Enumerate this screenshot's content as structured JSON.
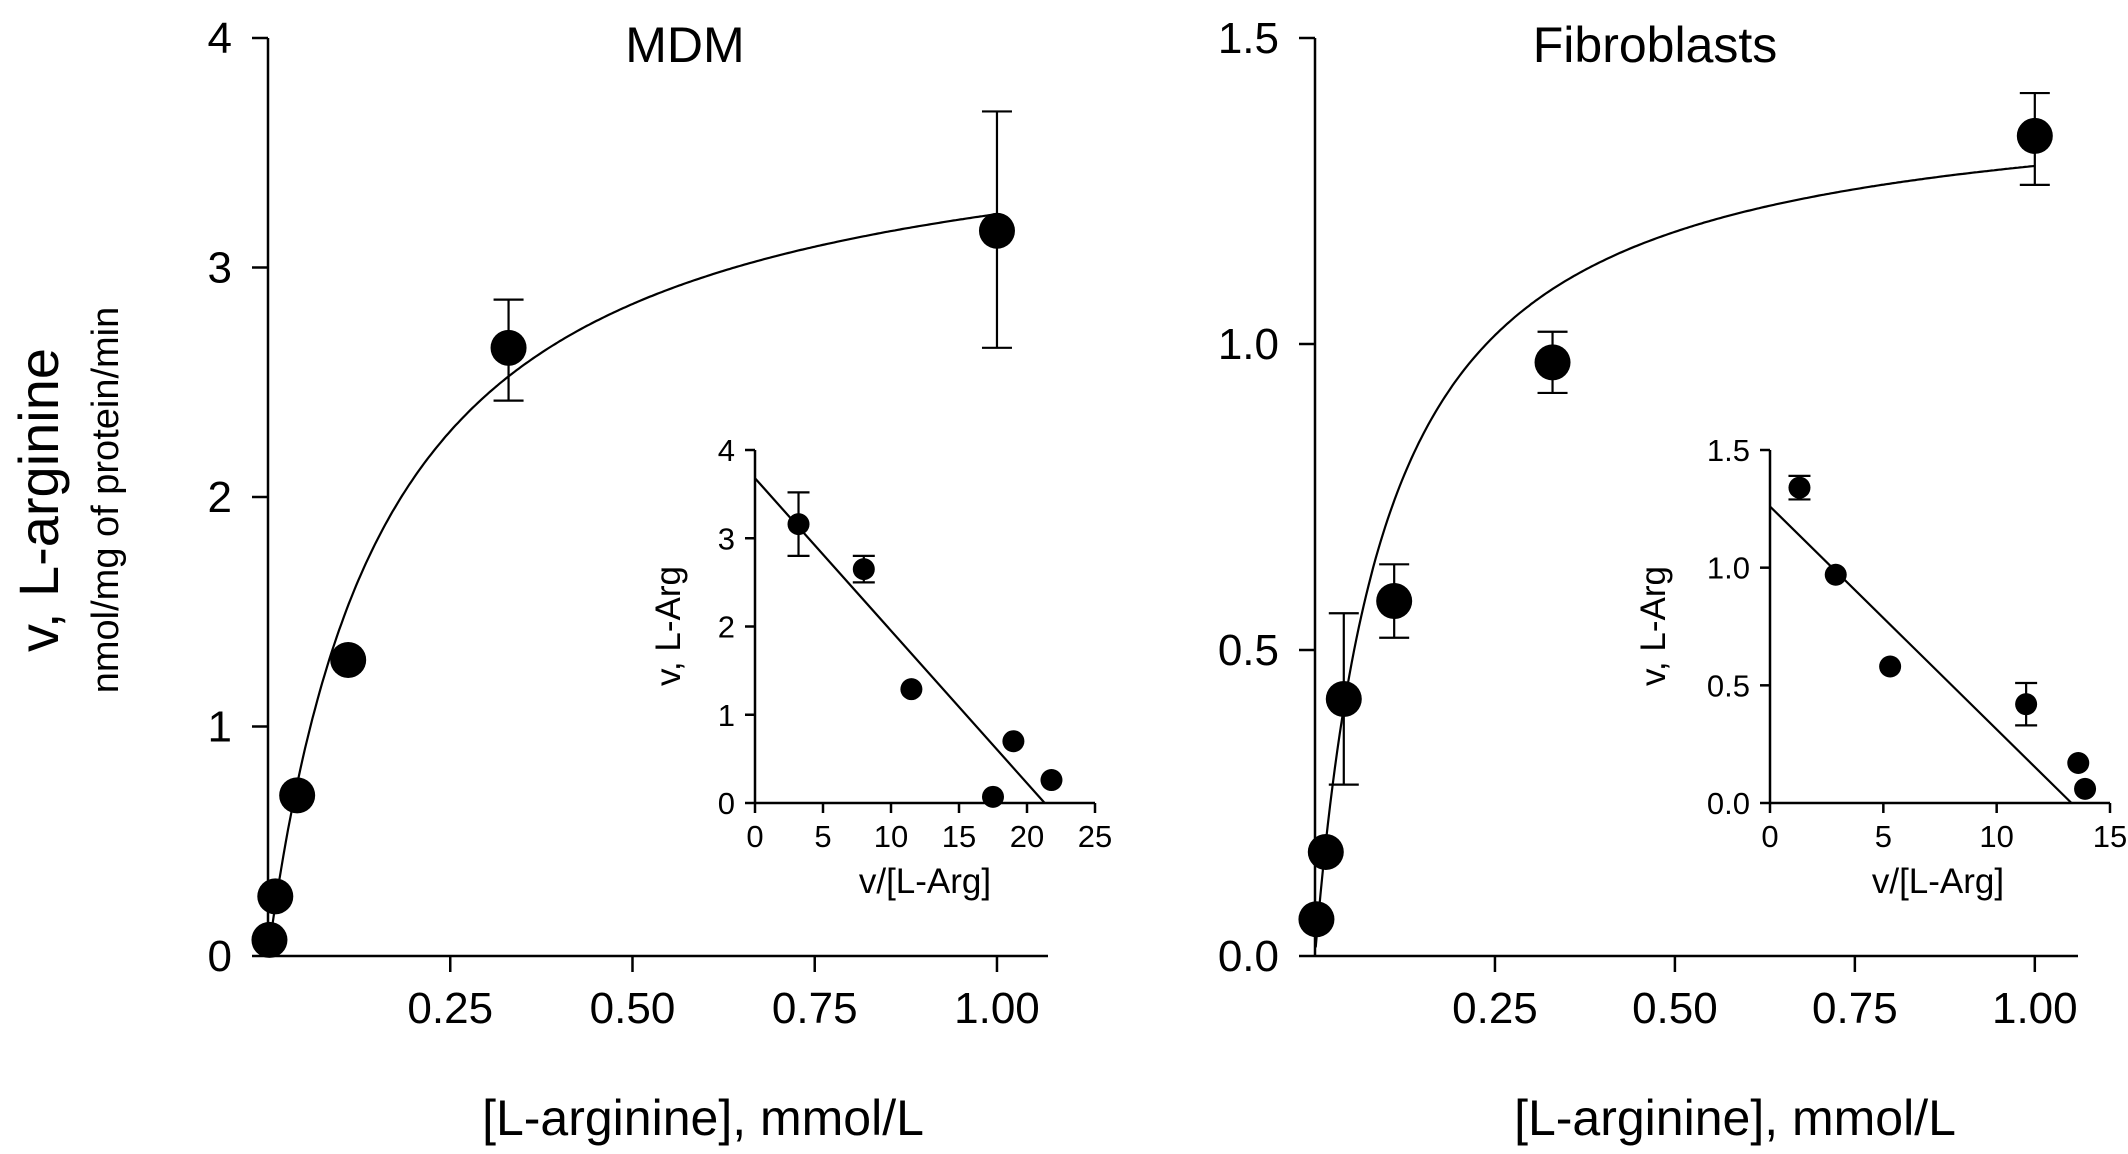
{
  "y_title": "v, L-arginine",
  "y_subtitle": "nmol/mg of protein/min",
  "chart_data": [
    {
      "type": "scatter",
      "title": "MDM",
      "xlabel": "[L-arginine], mmol/L",
      "ylabel": "v, L-arginine nmol/mg of protein/min",
      "xlim": [
        0,
        1.07
      ],
      "ylim": [
        0,
        4
      ],
      "xticks": [
        0.25,
        0.5,
        0.75,
        1.0
      ],
      "xtick_labels": [
        "0.25",
        "0.50",
        "0.75",
        "1.00"
      ],
      "yticks": [
        0,
        1,
        2,
        3,
        4
      ],
      "ytick_labels": [
        "0",
        "1",
        "2",
        "3",
        "4"
      ],
      "points": [
        {
          "x": 0.002,
          "y": 0.07
        },
        {
          "x": 0.01,
          "y": 0.26
        },
        {
          "x": 0.04,
          "y": 0.7
        },
        {
          "x": 0.11,
          "y": 1.29
        },
        {
          "x": 0.33,
          "y": 2.65,
          "err_low": 2.42,
          "err_high": 2.86
        },
        {
          "x": 1.0,
          "y": 3.16,
          "err_low": 2.65,
          "err_high": 3.68
        }
      ],
      "fit": {
        "model": "michaelis-menten",
        "vmax": 3.75,
        "km": 0.16
      },
      "inset": {
        "type": "scatter",
        "xlabel": "v/[L-Arg]",
        "ylabel": "v, L-Arg",
        "xlim": [
          0,
          25
        ],
        "ylim": [
          0,
          4
        ],
        "xticks": [
          0,
          5,
          10,
          15,
          20,
          25
        ],
        "xtick_labels": [
          "0",
          "5",
          "10",
          "15",
          "20",
          "25"
        ],
        "yticks": [
          0,
          1,
          2,
          3,
          4
        ],
        "ytick_labels": [
          "0",
          "1",
          "2",
          "3",
          "4"
        ],
        "points": [
          {
            "x": 3.2,
            "y": 3.16,
            "err_low": 2.8,
            "err_high": 3.52
          },
          {
            "x": 8.0,
            "y": 2.65,
            "err_low": 2.5,
            "err_high": 2.8
          },
          {
            "x": 11.5,
            "y": 1.29
          },
          {
            "x": 17.5,
            "y": 0.07
          },
          {
            "x": 19.0,
            "y": 0.7
          },
          {
            "x": 21.8,
            "y": 0.26
          }
        ],
        "fit_line": {
          "x": [
            0,
            21.3
          ],
          "y": [
            3.68,
            0
          ]
        }
      }
    },
    {
      "type": "scatter",
      "title": "Fibroblasts",
      "xlabel": "[L-arginine], mmol/L",
      "ylabel": "",
      "xlim": [
        0,
        1.06
      ],
      "ylim": [
        0,
        1.5
      ],
      "xticks": [
        0.25,
        0.5,
        0.75,
        1.0
      ],
      "xtick_labels": [
        "0.25",
        "0.50",
        "0.75",
        "1.00"
      ],
      "yticks": [
        0,
        0.5,
        1.0,
        1.5
      ],
      "ytick_labels": [
        "0.0",
        "0.5",
        "1.0",
        "1.5"
      ],
      "points": [
        {
          "x": 0.002,
          "y": 0.06
        },
        {
          "x": 0.015,
          "y": 0.17
        },
        {
          "x": 0.04,
          "y": 0.42,
          "err_low": 0.28,
          "err_high": 0.56
        },
        {
          "x": 0.11,
          "y": 0.58,
          "err_low": 0.52,
          "err_high": 0.64
        },
        {
          "x": 0.33,
          "y": 0.97,
          "err_low": 0.92,
          "err_high": 1.02
        },
        {
          "x": 1.0,
          "y": 1.34,
          "err_low": 1.26,
          "err_high": 1.41
        }
      ],
      "fit": {
        "model": "michaelis-menten",
        "vmax": 1.42,
        "km": 0.1
      },
      "inset": {
        "type": "scatter",
        "xlabel": "v/[L-Arg]",
        "ylabel": "v, L-Arg",
        "xlim": [
          0,
          15
        ],
        "ylim": [
          0,
          1.5
        ],
        "xticks": [
          0,
          5,
          10,
          15
        ],
        "xtick_labels": [
          "0",
          "5",
          "10",
          "15"
        ],
        "yticks": [
          0,
          0.5,
          1.0,
          1.5
        ],
        "ytick_labels": [
          "0.0",
          "0.5",
          "1.0",
          "1.5"
        ],
        "points": [
          {
            "x": 1.3,
            "y": 1.34,
            "err_low": 1.29,
            "err_high": 1.39
          },
          {
            "x": 2.9,
            "y": 0.97
          },
          {
            "x": 5.3,
            "y": 0.58
          },
          {
            "x": 11.3,
            "y": 0.42,
            "err_low": 0.33,
            "err_high": 0.51
          },
          {
            "x": 13.6,
            "y": 0.17
          },
          {
            "x": 13.9,
            "y": 0.06
          }
        ],
        "fit_line": {
          "x": [
            0,
            13.3
          ],
          "y": [
            1.26,
            0
          ]
        }
      }
    }
  ]
}
